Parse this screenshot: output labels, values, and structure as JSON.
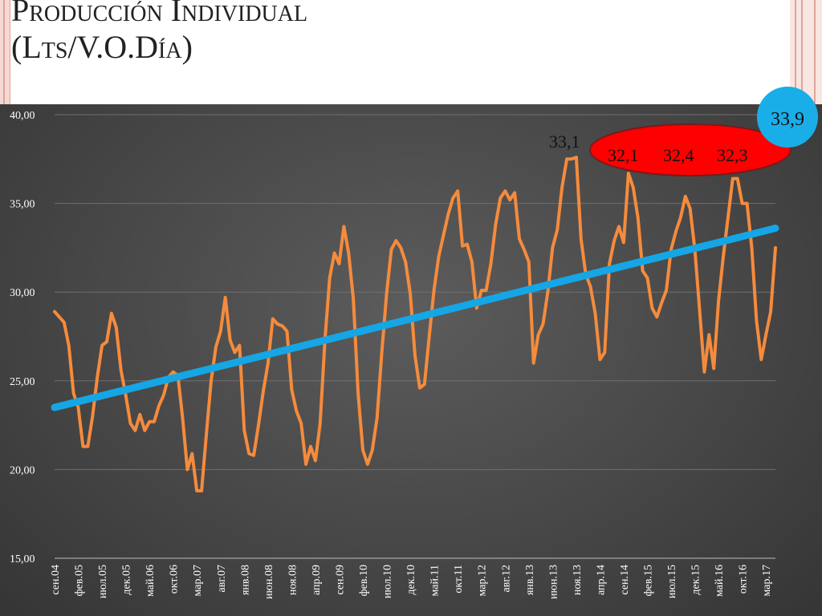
{
  "title": {
    "line1": "Producción Individual",
    "line2": "(Lts/V.O.Día)"
  },
  "colors": {
    "series": "#f58b3c",
    "trend": "#15a6e6",
    "highlight": "#ff0000",
    "badge": "#1aaee8"
  },
  "chart_data": {
    "type": "line",
    "title": "Producción Individual (Lts/V.O.Día)",
    "xlabel": "",
    "ylabel": "",
    "ylim": [
      15,
      40
    ],
    "yticks": [
      "15,00",
      "20,00",
      "25,00",
      "30,00",
      "35,00",
      "40,00"
    ],
    "grid": true,
    "legend": "none",
    "x_tick_labels": [
      "сен.04",
      "фев.05",
      "июл.05",
      "дек.05",
      "май.06",
      "окт.06",
      "мар.07",
      "авг.07",
      "янв.08",
      "июн.08",
      "ноя.08",
      "апр.09",
      "сен.09",
      "фев.10",
      "июл.10",
      "дек.10",
      "май.11",
      "окт.11",
      "мар.12",
      "авг.12",
      "янв.13",
      "июн.13",
      "ноя.13",
      "апр.14",
      "сен.14",
      "фев.15",
      "июл.15",
      "дек.15",
      "май.16",
      "окт.16",
      "мар.17"
    ],
    "x_start": "сен.04",
    "x_end": "мар.17",
    "series": [
      {
        "type": "line",
        "values": [
          28.9,
          28.6,
          28.3,
          27.0,
          24.3,
          23.5,
          21.3,
          21.3,
          23.0,
          25.2,
          27.0,
          27.2,
          28.8,
          28.0,
          25.6,
          24.2,
          22.6,
          22.2,
          23.1,
          22.2,
          22.7,
          22.7,
          23.6,
          24.2,
          25.2,
          25.5,
          25.3,
          22.9,
          20.0,
          20.9,
          18.8,
          18.8,
          22.0,
          25.0,
          26.9,
          27.8,
          29.7,
          27.3,
          26.6,
          27.0,
          22.2,
          20.9,
          20.8,
          22.5,
          24.4,
          26.0,
          28.5,
          28.2,
          28.1,
          27.8,
          24.5,
          23.3,
          22.6,
          20.3,
          21.3,
          20.5,
          22.6,
          27.3,
          30.8,
          32.2,
          31.6,
          33.7,
          32.2,
          29.6,
          24.3,
          21.1,
          20.3,
          21.1,
          22.9,
          26.6,
          29.9,
          32.4,
          32.9,
          32.5,
          31.7,
          29.9,
          26.4,
          24.6,
          24.8,
          27.5,
          30.1,
          32.0,
          33.2,
          34.4,
          35.3,
          35.7,
          32.6,
          32.7,
          31.7,
          29.1,
          30.1,
          30.1,
          31.6,
          33.8,
          35.3,
          35.7,
          35.2,
          35.6,
          33.0,
          32.4,
          31.7,
          26.0,
          27.6,
          28.2,
          30.0,
          32.5,
          33.5,
          35.9,
          37.5,
          37.5,
          37.6,
          33.0,
          31.0,
          30.3,
          28.8,
          26.2,
          26.6,
          31.6,
          32.9,
          33.7,
          32.8,
          36.7,
          35.9,
          34.2,
          31.2,
          30.8,
          29.1,
          28.6,
          29.4,
          30.1,
          32.4,
          33.4,
          34.2,
          35.4,
          34.7,
          32.4,
          29.0,
          25.5,
          27.6,
          25.7,
          29.5,
          32.0,
          34.2,
          36.4,
          36.4,
          35.0,
          35.0,
          32.5,
          28.4,
          26.2,
          27.6,
          28.9,
          32.5
        ]
      },
      {
        "type": "trendline",
        "values": [
          23.5,
          33.6
        ]
      }
    ],
    "annotations": [
      {
        "text": "33,1",
        "style": "plain"
      },
      {
        "text": "32,1",
        "style": "red-ellipse"
      },
      {
        "text": "32,4",
        "style": "red-ellipse"
      },
      {
        "text": "32,3",
        "style": "red-ellipse"
      },
      {
        "text": "33,9",
        "style": "blue-circle"
      }
    ]
  }
}
